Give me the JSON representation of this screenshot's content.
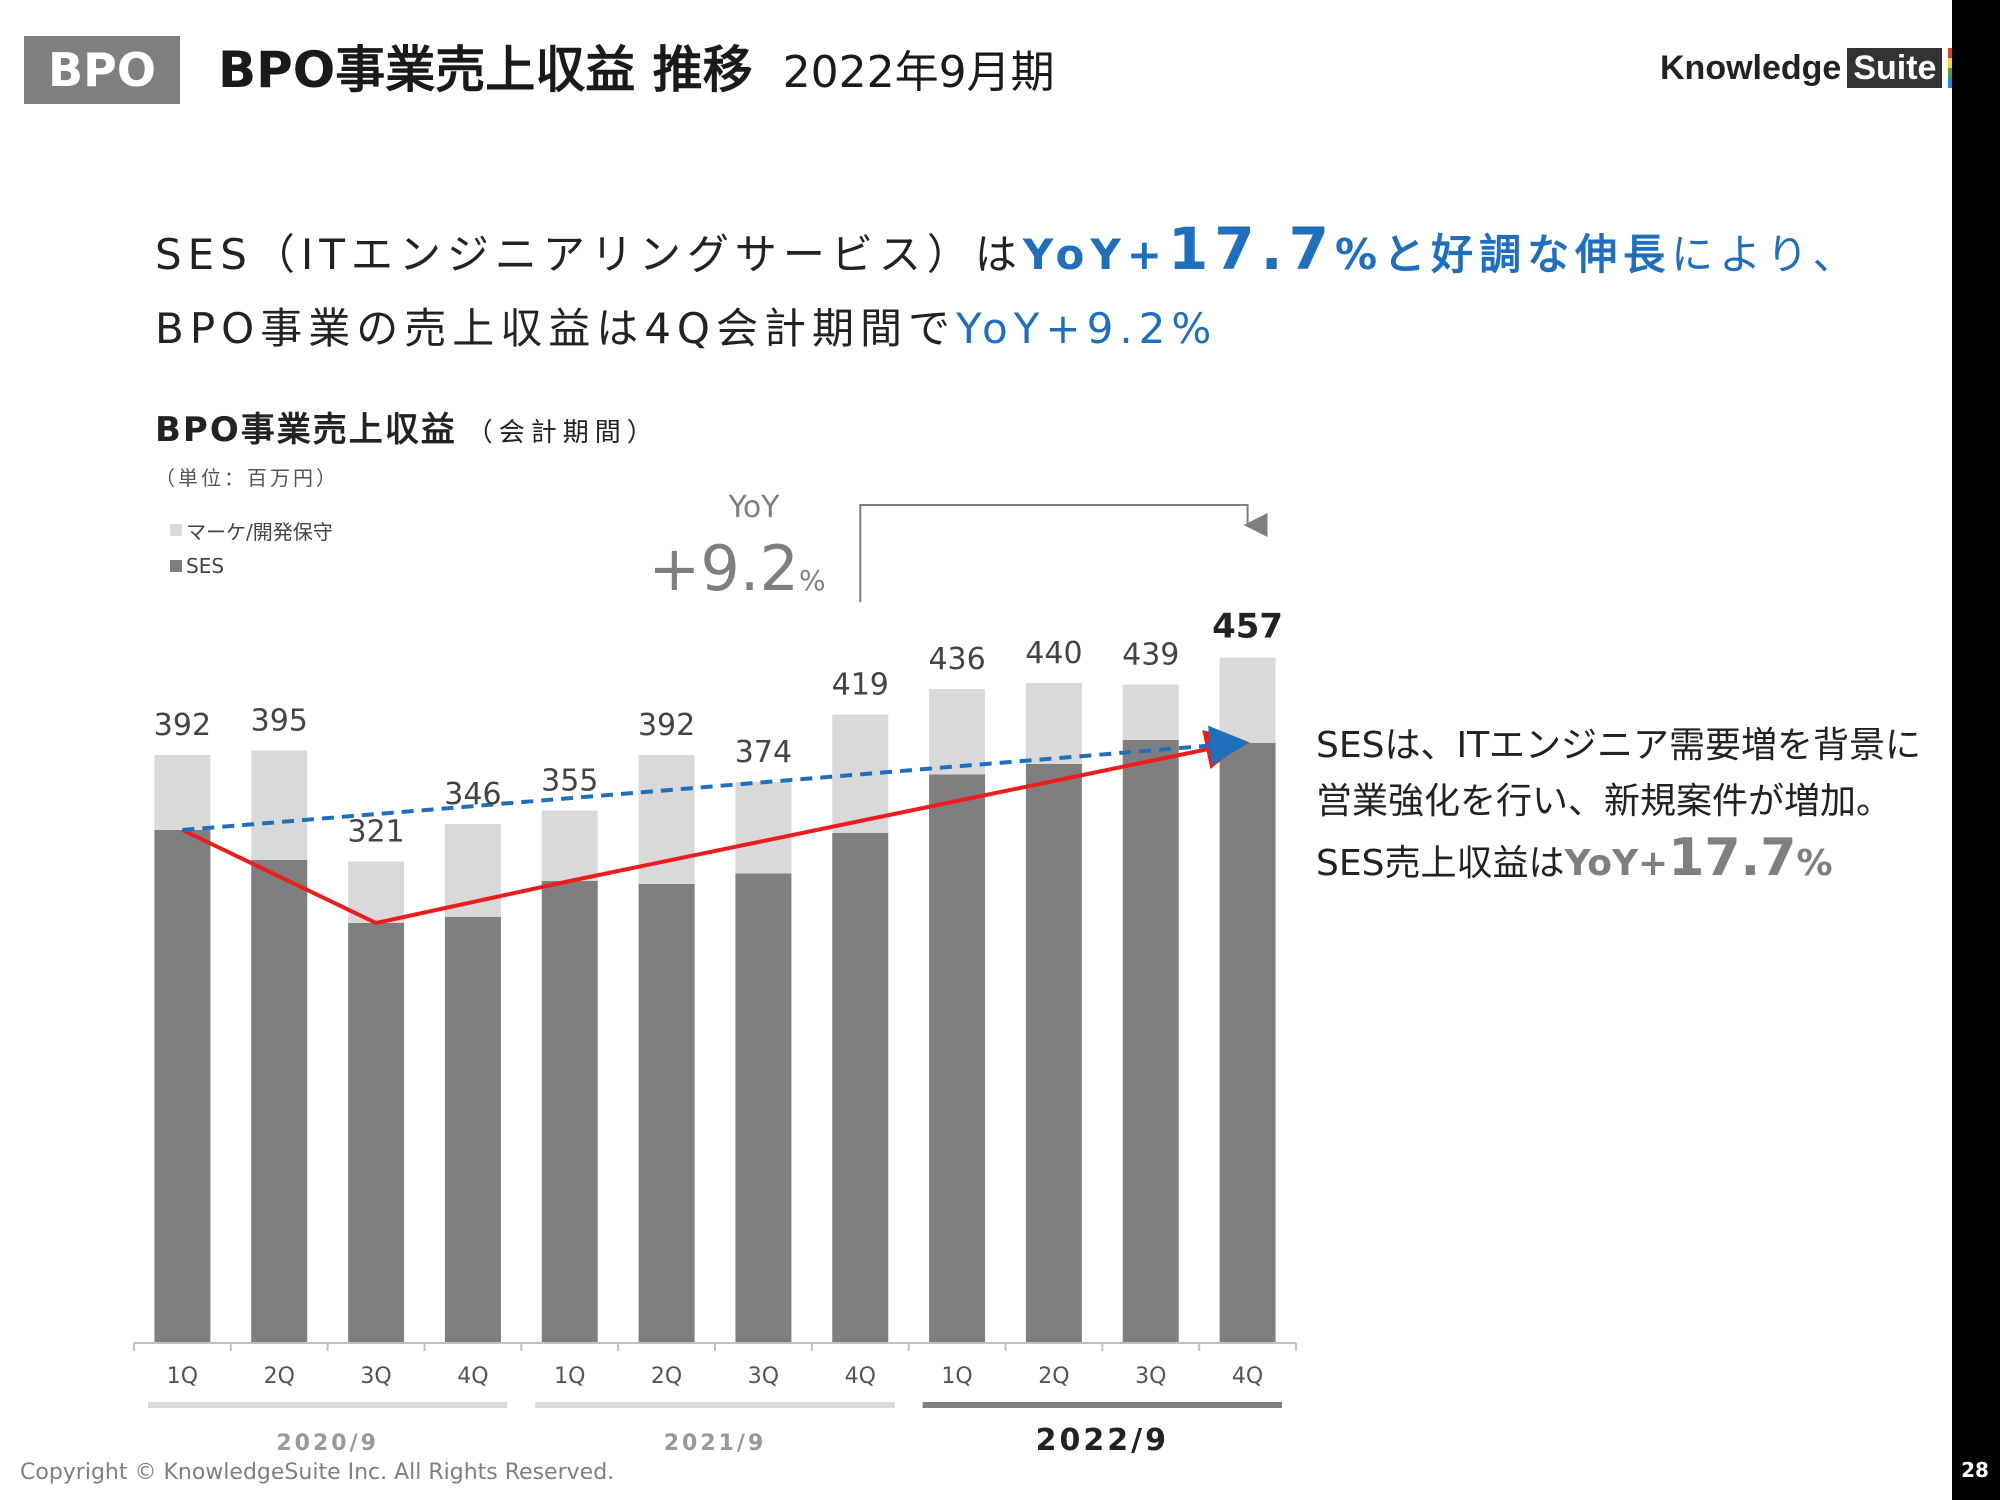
{
  "header": {
    "tag": "BPO",
    "title": "BPO事業売上収益 推移",
    "subtitle": "2022年9月期",
    "logo_text": "Knowledge",
    "logo_box": "Suite"
  },
  "headline": {
    "line1_a": "SES（ITエンジニアリングサービス）は",
    "line1_b": "YoY+",
    "line1_c": "17.7",
    "line1_d": "%と好調な伸長",
    "line1_e": "により、",
    "line2_a": "BPO事業の売上収益は4Q会計期間で",
    "line2_b": "YoY+9.2%"
  },
  "chart_title": "BPO事業売上収益",
  "chart_title_paren": "（会計期間）",
  "unit": "（単位：百万円）",
  "legend": [
    {
      "label": "マーケ/開発保守",
      "color": "#d9d9d9"
    },
    {
      "label": "SES",
      "color": "#7f7f7f"
    }
  ],
  "yoy_callout": {
    "label": "YoY",
    "value": "+9.2",
    "pct": "%"
  },
  "side_note": {
    "line1": "SESは、ITエンジニア需要増を背景に",
    "line2": "営業強化を行い、新規案件が増加。",
    "line3_a": "SES売上収益は",
    "line3_b": "YoY+",
    "line3_c": "17.7",
    "line3_d": "%"
  },
  "chart_data": {
    "type": "bar",
    "stacked": true,
    "categories": [
      "1Q",
      "2Q",
      "3Q",
      "4Q",
      "1Q",
      "2Q",
      "3Q",
      "4Q",
      "1Q",
      "2Q",
      "3Q",
      "4Q"
    ],
    "groups": [
      {
        "label": "2020/9",
        "start": 0,
        "end": 3
      },
      {
        "label": "2021/9",
        "start": 4,
        "end": 7
      },
      {
        "label": "2022/9",
        "start": 8,
        "end": 11
      }
    ],
    "totals": [
      392,
      395,
      321,
      346,
      355,
      392,
      374,
      419,
      436,
      440,
      439,
      457
    ],
    "series": [
      {
        "name": "SES",
        "color": "#7f7f7f",
        "values": [
          342,
          322,
          280,
          284,
          308,
          306,
          313,
          340,
          379,
          386,
          402,
          400
        ]
      },
      {
        "name": "マーケ/開発保守",
        "color": "#d9d9d9",
        "values": [
          50,
          73,
          41,
          62,
          47,
          86,
          61,
          79,
          57,
          54,
          37,
          57
        ]
      }
    ],
    "ylim": [
      0,
      500
    ],
    "red_line_points": [
      0,
      2,
      4,
      11
    ],
    "blue_dashed_points": [
      0,
      11
    ],
    "highlight_index": 11
  },
  "copyright": "Copyright © KnowledgeSuite Inc. All Rights Reserved.",
  "page_number": "28"
}
